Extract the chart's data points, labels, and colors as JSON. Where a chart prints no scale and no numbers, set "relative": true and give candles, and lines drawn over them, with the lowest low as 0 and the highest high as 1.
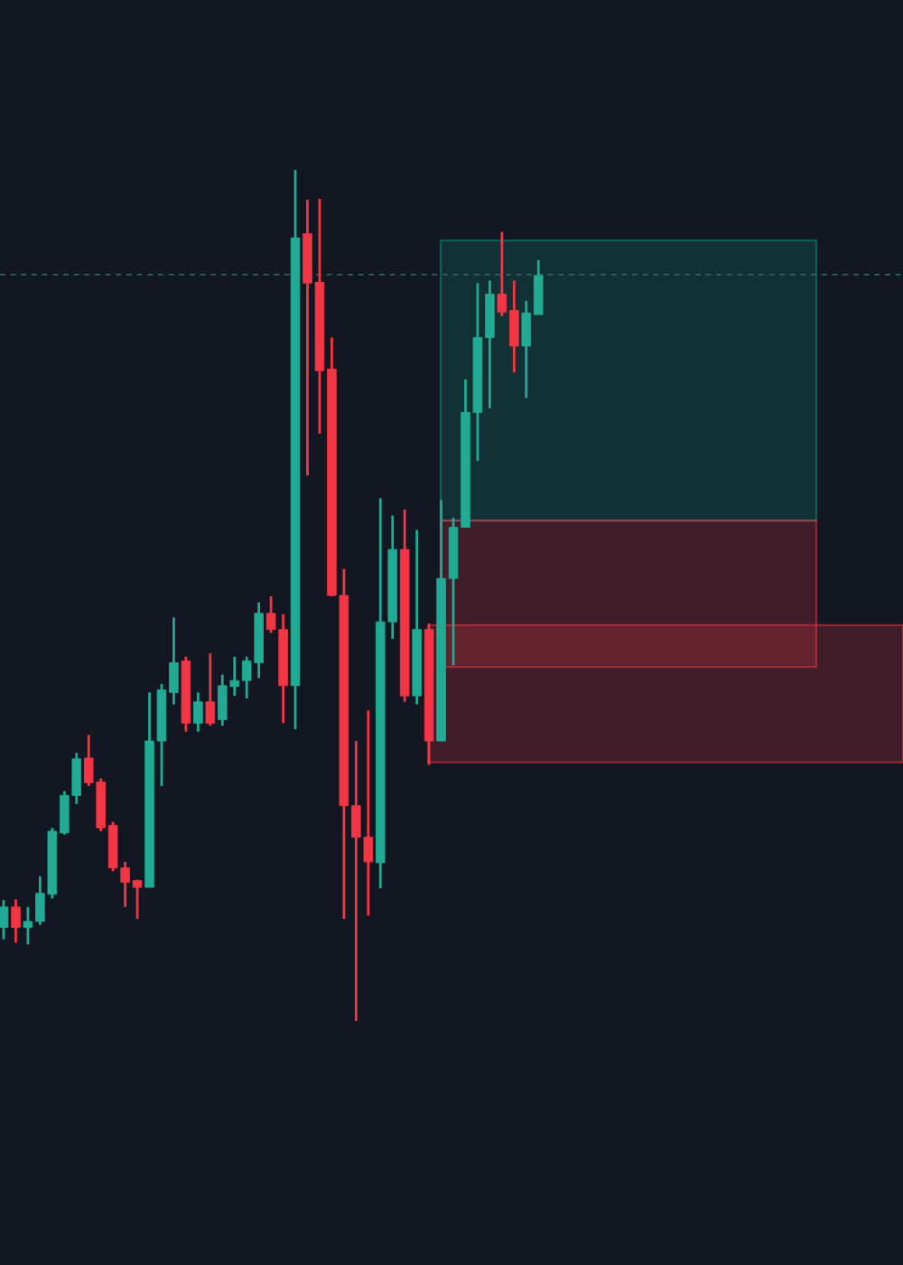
{
  "chart_data": {
    "type": "candlestick",
    "relative": true,
    "categories": [
      null,
      null,
      null,
      null,
      null,
      null,
      null,
      null,
      null,
      null,
      null,
      null,
      null,
      null,
      null,
      null,
      null,
      null,
      null,
      null,
      null,
      null,
      null,
      null,
      null,
      null,
      null,
      null,
      null,
      null,
      null,
      null,
      null,
      null,
      null,
      null,
      null,
      null,
      null,
      null,
      null,
      null,
      null,
      null,
      null
    ],
    "ohlc": [
      [
        0.11,
        0.142,
        0.096,
        0.134
      ],
      [
        0.134,
        0.143,
        0.092,
        0.11
      ],
      [
        0.11,
        0.134,
        0.09,
        0.117
      ],
      [
        0.117,
        0.17,
        0.113,
        0.15
      ],
      [
        0.149,
        0.227,
        0.144,
        0.223
      ],
      [
        0.221,
        0.27,
        0.219,
        0.265
      ],
      [
        0.265,
        0.315,
        0.255,
        0.308
      ],
      [
        0.309,
        0.336,
        0.276,
        0.28
      ],
      [
        0.281,
        0.285,
        0.223,
        0.227
      ],
      [
        0.23,
        0.234,
        0.176,
        0.18
      ],
      [
        0.18,
        0.187,
        0.134,
        0.163
      ],
      [
        0.165,
        0.166,
        0.12,
        0.157
      ],
      [
        0.157,
        0.386,
        0.157,
        0.329
      ],
      [
        0.329,
        0.396,
        0.276,
        0.389
      ],
      [
        0.386,
        0.474,
        0.372,
        0.421
      ],
      [
        0.423,
        0.428,
        0.34,
        0.35
      ],
      [
        0.35,
        0.386,
        0.34,
        0.375
      ],
      [
        0.375,
        0.432,
        0.347,
        0.35
      ],
      [
        0.354,
        0.407,
        0.347,
        0.394
      ],
      [
        0.393,
        0.428,
        0.382,
        0.4
      ],
      [
        0.4,
        0.428,
        0.379,
        0.423
      ],
      [
        0.421,
        0.492,
        0.403,
        0.479
      ],
      [
        0.479,
        0.499,
        0.456,
        0.46
      ],
      [
        0.46,
        0.478,
        0.35,
        0.394
      ],
      [
        0.394,
        1.0,
        0.343,
        0.92
      ],
      [
        0.925,
        0.965,
        0.641,
        0.867
      ],
      [
        0.868,
        0.966,
        0.69,
        0.764
      ],
      [
        0.766,
        0.803,
        0.499,
        0.5
      ],
      [
        0.5,
        0.531,
        0.12,
        0.253
      ],
      [
        0.253,
        0.329,
        0.0,
        0.216
      ],
      [
        0.216,
        0.365,
        0.124,
        0.187
      ],
      [
        0.186,
        0.614,
        0.156,
        0.469
      ],
      [
        0.469,
        0.594,
        0.449,
        0.554
      ],
      [
        0.554,
        0.601,
        0.375,
        0.382
      ],
      [
        0.382,
        0.577,
        0.372,
        0.46
      ],
      [
        0.46,
        0.467,
        0.301,
        0.329
      ],
      [
        0.329,
        0.612,
        0.329,
        0.52
      ],
      [
        0.52,
        0.591,
        0.418,
        0.58
      ],
      [
        0.58,
        0.754,
        0.58,
        0.715
      ],
      [
        0.715,
        0.867,
        0.658,
        0.803
      ],
      [
        0.803,
        0.87,
        0.72,
        0.854
      ],
      [
        0.854,
        0.927,
        0.828,
        0.833
      ],
      [
        0.835,
        0.87,
        0.762,
        0.793
      ],
      [
        0.793,
        0.846,
        0.732,
        0.832
      ],
      [
        0.83,
        0.894,
        0.83,
        0.876
      ]
    ],
    "colors": [
      "#22ab94",
      "#f23645",
      "#22ab94",
      "#22ab94",
      "#22ab94",
      "#22ab94",
      "#22ab94",
      "#f23645",
      "#f23645",
      "#f23645",
      "#f23645",
      "#f23645",
      "#22ab94",
      "#22ab94",
      "#22ab94",
      "#f23645",
      "#22ab94",
      "#f23645",
      "#22ab94",
      "#22ab94",
      "#22ab94",
      "#22ab94",
      "#f23645",
      "#f23645",
      "#22ab94",
      "#f23645",
      "#f23645",
      "#f23645",
      "#f23645",
      "#f23645",
      "#f23645",
      "#22ab94",
      "#22ab94",
      "#f23645",
      "#22ab94",
      "#f23645",
      "#22ab94",
      "#22ab94",
      "#22ab94",
      "#22ab94",
      "#22ab94",
      "#f23645",
      "#f23645",
      "#22ab94",
      "#22ab94"
    ],
    "ref_lines": [
      {
        "axis": "y",
        "value": 0.877,
        "color": "#35615e",
        "line_style": "dashed"
      }
    ],
    "bands": [
      {
        "axis": "y",
        "from": 0.588,
        "to": 0.917,
        "color": "#089981"
      },
      {
        "axis": "y",
        "from": 0.416,
        "to": 0.588,
        "color": "#f23645"
      },
      {
        "axis": "y",
        "from": 0.304,
        "to": 0.465,
        "color": "#f23645"
      }
    ]
  }
}
